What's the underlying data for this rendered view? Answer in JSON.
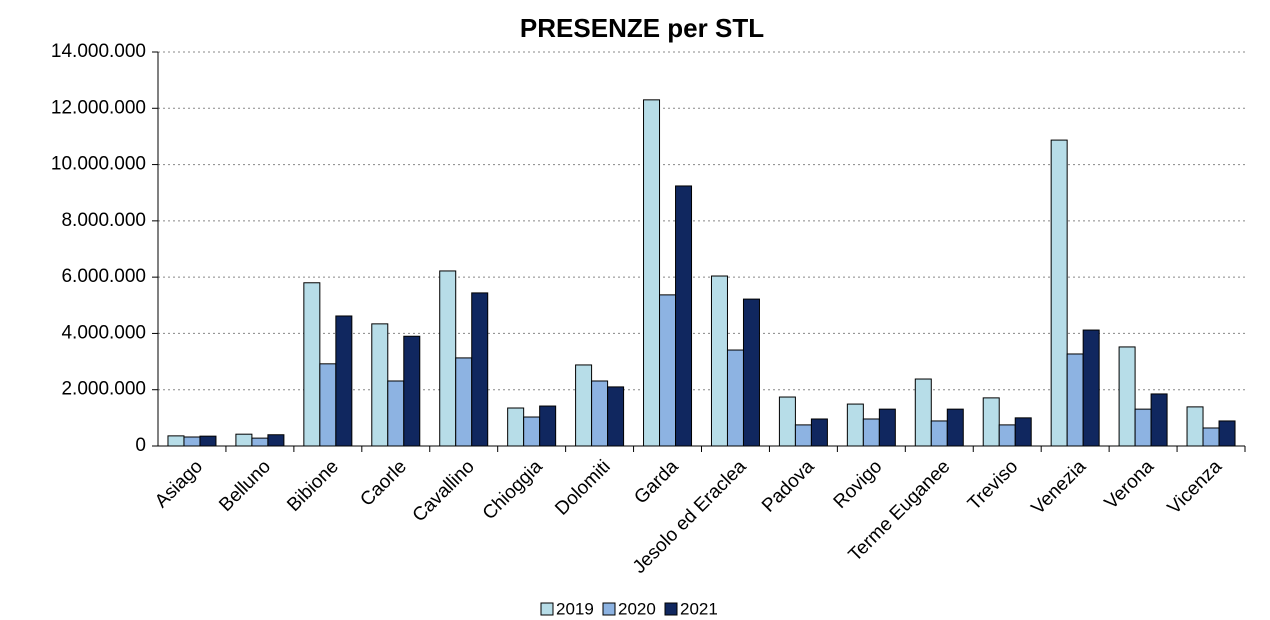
{
  "chart_data": {
    "type": "bar",
    "title": "PRESENZE per STL",
    "categories": [
      "Asiago",
      "Belluno",
      "Bibione",
      "Caorle",
      "Cavallino",
      "Chioggia",
      "Dolomiti",
      "Garda",
      "Jesolo ed Eraclea",
      "Padova",
      "Rovigo",
      "Terme Euganee",
      "Treviso",
      "Venezia",
      "Verona",
      "Vicenza"
    ],
    "series": [
      {
        "name": "2019",
        "color": "#b7dde8",
        "values": [
          360000,
          420000,
          5800000,
          4340000,
          6220000,
          1350000,
          2880000,
          12300000,
          6040000,
          1740000,
          1490000,
          2380000,
          1710000,
          10870000,
          3520000,
          1390000
        ]
      },
      {
        "name": "2020",
        "color": "#8db3e2",
        "values": [
          320000,
          280000,
          2920000,
          2310000,
          3130000,
          1030000,
          2310000,
          5370000,
          3410000,
          750000,
          960000,
          890000,
          750000,
          3270000,
          1310000,
          640000
        ]
      },
      {
        "name": "2021",
        "color": "#10275f",
        "values": [
          350000,
          400000,
          4620000,
          3900000,
          5440000,
          1420000,
          2100000,
          9240000,
          5220000,
          960000,
          1310000,
          1310000,
          1000000,
          4120000,
          1850000,
          890000
        ]
      }
    ],
    "ylim": [
      0,
      14000000
    ],
    "yticks": [
      0,
      {
        "value": 2000000,
        "label": "2.000.000"
      },
      {
        "value": 4000000,
        "label": "4.000.000"
      },
      {
        "value": 6000000,
        "label": "6.000.000"
      },
      {
        "value": 8000000,
        "label": "8.000.000"
      },
      {
        "value": 10000000,
        "label": "10.000.000"
      },
      {
        "value": 12000000,
        "label": "12.000.000"
      },
      {
        "value": 14000000,
        "label": "14.000.000"
      }
    ],
    "grid": true,
    "legend": "bottom"
  }
}
